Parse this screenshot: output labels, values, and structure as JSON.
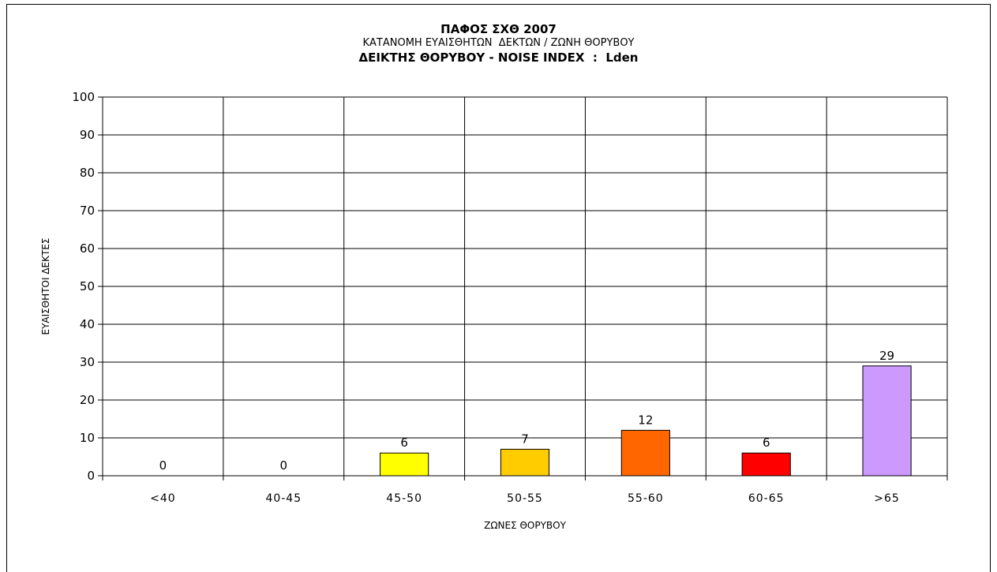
{
  "chart_data": {
    "type": "bar",
    "title": "ΠΑΦΟΣ ΣΧΘ 2007",
    "subtitle": "ΚΑΤΑΝΟΜΗ ΕΥΑΙΣΘΗΤΩΝ  ΔΕΚΤΩΝ / ΖΩΝΗ ΘΟΡΥΒΟΥ",
    "subtitle2": "ΔΕΙΚΤΗΣ ΘΟΡΥΒΟΥ - NOISE INDEX  :  Lden",
    "xlabel": "ΖΩΝΕΣ ΘΟΡΥΒΟΥ",
    "ylabel": "ΕΥΑΙΣΘΗΤΟΙ ΔΕΚΤΕΣ",
    "categories": [
      "<40",
      "40-45",
      "45-50",
      "50-55",
      "55-60",
      "60-65",
      ">65"
    ],
    "values": [
      0,
      0,
      6,
      7,
      12,
      6,
      29
    ],
    "bar_colors": [
      "#ffffff",
      "#ffffff",
      "#ffff00",
      "#ffcc00",
      "#ff6600",
      "#ff0000",
      "#cc99ff"
    ],
    "ylim": [
      0,
      100
    ],
    "yticks": [
      0,
      10,
      20,
      30,
      40,
      50,
      60,
      70,
      80,
      90,
      100
    ],
    "grid": true,
    "legend": "none"
  }
}
